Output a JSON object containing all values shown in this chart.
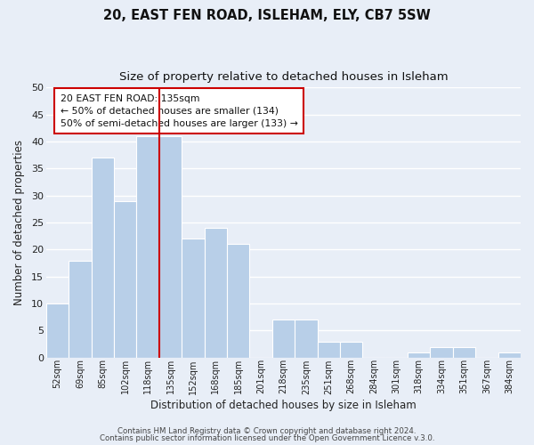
{
  "title1": "20, EAST FEN ROAD, ISLEHAM, ELY, CB7 5SW",
  "title2": "Size of property relative to detached houses in Isleham",
  "xlabel": "Distribution of detached houses by size in Isleham",
  "ylabel": "Number of detached properties",
  "bar_labels": [
    "52sqm",
    "69sqm",
    "85sqm",
    "102sqm",
    "118sqm",
    "135sqm",
    "152sqm",
    "168sqm",
    "185sqm",
    "201sqm",
    "218sqm",
    "235sqm",
    "251sqm",
    "268sqm",
    "284sqm",
    "301sqm",
    "318sqm",
    "334sqm",
    "351sqm",
    "367sqm",
    "384sqm"
  ],
  "bar_values": [
    10,
    18,
    37,
    29,
    41,
    41,
    22,
    24,
    21,
    0,
    7,
    7,
    3,
    3,
    0,
    0,
    1,
    2,
    2,
    0,
    1
  ],
  "bar_color": "#b8cfe8",
  "vline_color": "#cc0000",
  "vline_x_index": 5,
  "ylim": [
    0,
    50
  ],
  "yticks": [
    0,
    5,
    10,
    15,
    20,
    25,
    30,
    35,
    40,
    45,
    50
  ],
  "annotation_title": "20 EAST FEN ROAD: 135sqm",
  "annotation_line1": "← 50% of detached houses are smaller (134)",
  "annotation_line2": "50% of semi-detached houses are larger (133) →",
  "annotation_box_facecolor": "#ffffff",
  "annotation_box_edgecolor": "#cc0000",
  "footer1": "Contains HM Land Registry data © Crown copyright and database right 2024.",
  "footer2": "Contains public sector information licensed under the Open Government Licence v.3.0.",
  "background_color": "#e8eef7",
  "grid_color": "#ffffff",
  "title1_fontsize": 10.5,
  "title2_fontsize": 9.5,
  "ylabel_fontsize": 8.5,
  "xlabel_fontsize": 8.5
}
